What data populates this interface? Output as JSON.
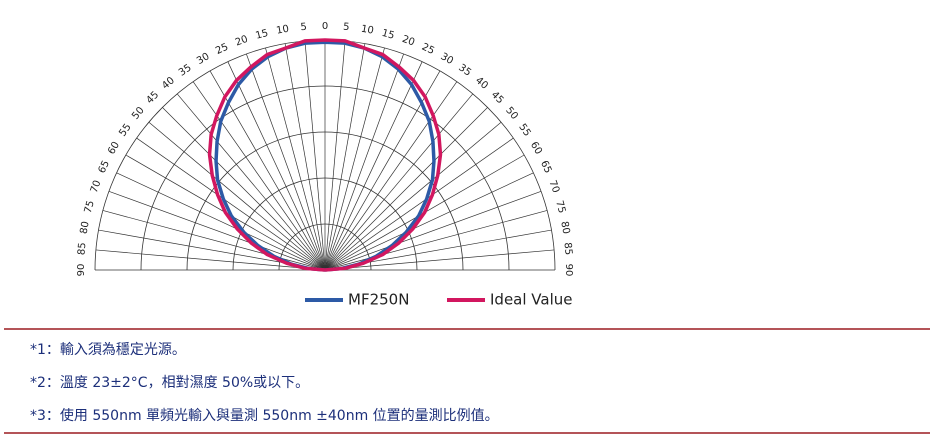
{
  "chart_data": {
    "type": "polar",
    "angles": [
      -90,
      -85,
      -80,
      -75,
      -70,
      -65,
      -60,
      -55,
      -50,
      -45,
      -40,
      -35,
      -30,
      -25,
      -20,
      -15,
      -10,
      -5,
      0,
      5,
      10,
      15,
      20,
      25,
      30,
      35,
      40,
      45,
      50,
      55,
      60,
      65,
      70,
      75,
      80,
      85,
      90
    ],
    "thetaticks": [
      {
        "value": -90,
        "label": "90"
      },
      {
        "value": -85,
        "label": "85"
      },
      {
        "value": -80,
        "label": "80"
      },
      {
        "value": -75,
        "label": "75"
      },
      {
        "value": -70,
        "label": "70"
      },
      {
        "value": -65,
        "label": "65"
      },
      {
        "value": -60,
        "label": "60"
      },
      {
        "value": -55,
        "label": "55"
      },
      {
        "value": -50,
        "label": "50"
      },
      {
        "value": -45,
        "label": "45"
      },
      {
        "value": -40,
        "label": "40"
      },
      {
        "value": -35,
        "label": "35"
      },
      {
        "value": -30,
        "label": "30"
      },
      {
        "value": -25,
        "label": "25"
      },
      {
        "value": -20,
        "label": "20"
      },
      {
        "value": -15,
        "label": "15"
      },
      {
        "value": -10,
        "label": "10"
      },
      {
        "value": -5,
        "label": "5"
      },
      0,
      5,
      10,
      15,
      20,
      25,
      30,
      35,
      40,
      45,
      50,
      55,
      60,
      65,
      70,
      75,
      80,
      85,
      90
    ],
    "rlim": [
      0,
      1
    ],
    "rgrid": [
      0.2,
      0.4,
      0.6,
      0.8,
      1
    ],
    "series": [
      {
        "name": "MF250N",
        "color": "#2d5aa6",
        "values": [
          0,
          0.07,
          0.15,
          0.23,
          0.31,
          0.39,
          0.47,
          0.54,
          0.61,
          0.67,
          0.73,
          0.79,
          0.84,
          0.89,
          0.93,
          0.96,
          0.98,
          0.99,
          0.99,
          0.99,
          0.98,
          0.96,
          0.93,
          0.89,
          0.84,
          0.79,
          0.73,
          0.67,
          0.61,
          0.54,
          0.47,
          0.39,
          0.31,
          0.23,
          0.15,
          0.07,
          0
        ]
      },
      {
        "name": "Ideal Value",
        "color": "#d2175f",
        "values": [
          0,
          0.09,
          0.17,
          0.26,
          0.34,
          0.42,
          0.5,
          0.57,
          0.64,
          0.71,
          0.77,
          0.82,
          0.87,
          0.91,
          0.94,
          0.97,
          0.98,
          1,
          1,
          1,
          0.98,
          0.97,
          0.94,
          0.91,
          0.87,
          0.82,
          0.77,
          0.71,
          0.64,
          0.57,
          0.5,
          0.42,
          0.34,
          0.26,
          0.17,
          0.09,
          0
        ]
      }
    ]
  },
  "notes": [
    "*1：輸入須為穩定光源。",
    "*2：溫度 23±2°C，相對濕度 50%或以下。",
    "*3：使用 550nm 單頻光輸入與量測 550nm  ±40nm  位置的量測比例值。"
  ]
}
